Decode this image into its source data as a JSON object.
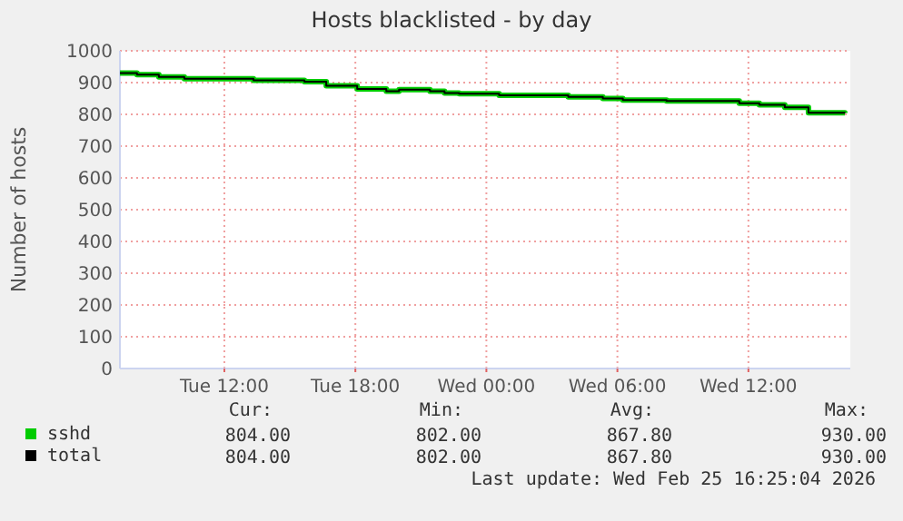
{
  "chart_data": {
    "type": "step",
    "title": "Hosts blacklisted - by day",
    "ylabel": "Number of hosts",
    "x": [
      "2026-02-24T07:13",
      "2026-02-24T08:00",
      "2026-02-24T09:00",
      "2026-02-24T10:10",
      "2026-02-24T13:20",
      "2026-02-24T15:40",
      "2026-02-24T16:40",
      "2026-02-24T18:05",
      "2026-02-24T19:25",
      "2026-02-24T20:00",
      "2026-02-24T21:25",
      "2026-02-24T22:05",
      "2026-02-24T22:45",
      "2026-02-25T00:35",
      "2026-02-25T03:45",
      "2026-02-25T05:20",
      "2026-02-25T06:15",
      "2026-02-25T08:15",
      "2026-02-25T11:35",
      "2026-02-25T12:30",
      "2026-02-25T13:40",
      "2026-02-25T14:45",
      "2026-02-25T16:25"
    ],
    "series": [
      {
        "name": "sshd",
        "color": "#00cc00",
        "values": [
          930,
          925,
          918,
          912,
          907,
          903,
          890,
          880,
          873,
          878,
          873,
          867,
          865,
          860,
          855,
          850,
          845,
          842,
          835,
          830,
          822,
          805,
          804
        ]
      },
      {
        "name": "total",
        "color": "#000000",
        "values": [
          930,
          925,
          918,
          912,
          907,
          903,
          890,
          880,
          873,
          878,
          873,
          867,
          865,
          860,
          855,
          850,
          845,
          842,
          835,
          830,
          822,
          805,
          804
        ]
      }
    ],
    "xlim": [
      "2026-02-24T07:13",
      "2026-02-25T16:40"
    ],
    "xticks": [
      {
        "value": "2026-02-24T12:00",
        "label": "Tue 12:00"
      },
      {
        "value": "2026-02-24T18:00",
        "label": "Tue 18:00"
      },
      {
        "value": "2026-02-25T00:00",
        "label": "Wed 00:00"
      },
      {
        "value": "2026-02-25T06:00",
        "label": "Wed 06:00"
      },
      {
        "value": "2026-02-25T12:00",
        "label": "Wed 12:00"
      }
    ],
    "ylim": [
      0,
      1000
    ],
    "yticks": [
      0,
      100,
      200,
      300,
      400,
      500,
      600,
      700,
      800,
      900,
      1000
    ],
    "grid": true,
    "legend": "bottom left",
    "annotations": [
      "Cur:",
      "Min:",
      "Avg:",
      "Max:",
      "804.00",
      "802.00",
      "867.80",
      "930.00",
      "804.00",
      "802.00",
      "867.80",
      "930.00",
      "Last update: Wed Feb 25 16:25:04 2026"
    ]
  }
}
